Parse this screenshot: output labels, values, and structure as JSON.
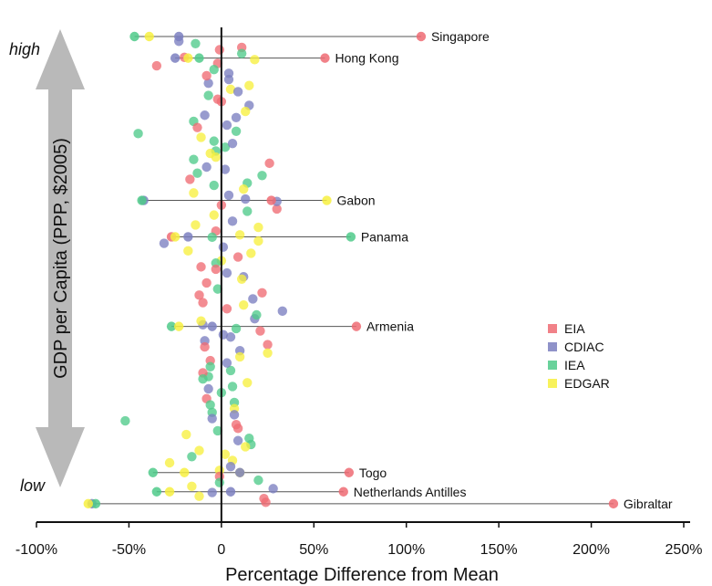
{
  "chart_data": {
    "type": "scatter",
    "xlabel": "Percentage Difference from Mean",
    "ylabel": "GDP per Capita (PPP, $2005)",
    "y_high_label": "high",
    "y_low_label": "low",
    "xlim": [
      -100,
      250
    ],
    "xticks": [
      -100,
      -50,
      0,
      50,
      100,
      150,
      200,
      250
    ],
    "xtick_labels": [
      "-100%",
      "-50%",
      "0",
      "50%",
      "100%",
      "150%",
      "200%",
      "250%"
    ],
    "legend_position": "right",
    "series": [
      {
        "name": "EIA",
        "color": "#ef6b73"
      },
      {
        "name": "CDIAC",
        "color": "#7b7fc0"
      },
      {
        "name": "IEA",
        "color": "#4fca8a"
      },
      {
        "name": "EDGAR",
        "color": "#f7f03f"
      }
    ],
    "highlighted_countries": [
      {
        "name": "Singapore",
        "rank_from_top": 0.0,
        "points": {
          "EIA": 108,
          "CDIAC": -23,
          "IEA": -47,
          "EDGAR": -39
        }
      },
      {
        "name": "Hong Kong",
        "rank_from_top": 0.045,
        "points": {
          "EIA": 56,
          "CDIAC": -25,
          "IEA": -12,
          "EDGAR": -18
        }
      },
      {
        "name": "Gabon",
        "rank_from_top": 0.342,
        "points": {
          "EIA": 27,
          "CDIAC": -42,
          "IEA": -43,
          "EDGAR": 57
        }
      },
      {
        "name": "Panama",
        "rank_from_top": 0.418,
        "points": {
          "EIA": -27,
          "CDIAC": -18,
          "IEA": 70,
          "EDGAR": -25
        }
      },
      {
        "name": "Armenia",
        "rank_from_top": 0.605,
        "points": {
          "EIA": 73,
          "CDIAC": -5,
          "IEA": -27,
          "EDGAR": -23
        }
      },
      {
        "name": "Togo",
        "rank_from_top": 0.91,
        "points": {
          "EIA": 69,
          "CDIAC": 10,
          "IEA": -37,
          "EDGAR": -20
        }
      },
      {
        "name": "Netherlands Antilles",
        "rank_from_top": 0.95,
        "points": {
          "EIA": 66,
          "CDIAC": 5,
          "IEA": -35,
          "EDGAR": -28
        }
      },
      {
        "name": "Gibraltar",
        "rank_from_top": 0.975,
        "points": {
          "EIA": 212,
          "CDIAC": -70,
          "IEA": -68,
          "EDGAR": -72
        }
      }
    ],
    "background_points": [
      [
        -23,
        1
      ],
      [
        8,
        2
      ],
      [
        -3,
        2
      ],
      [
        15,
        2
      ],
      [
        0,
        3
      ],
      [
        -7,
        1
      ],
      [
        5,
        2
      ],
      [
        -15,
        3
      ],
      [
        20,
        2
      ],
      [
        -10,
        0
      ],
      [
        3,
        1
      ],
      [
        -5,
        2
      ],
      [
        10,
        3
      ],
      [
        -20,
        0
      ],
      [
        25,
        0
      ],
      [
        -8,
        1
      ],
      [
        2,
        3
      ],
      [
        12,
        1
      ],
      [
        -2,
        0
      ],
      [
        6,
        2
      ],
      [
        30,
        0
      ],
      [
        -12,
        3
      ],
      [
        18,
        1
      ],
      [
        -4,
        2
      ],
      [
        9,
        0
      ],
      [
        -18,
        3
      ],
      [
        4,
        1
      ],
      [
        -6,
        0
      ],
      [
        14,
        2
      ],
      [
        -1,
        3
      ],
      [
        22,
        0
      ],
      [
        -9,
        1
      ],
      [
        7,
        2
      ],
      [
        -14,
        3
      ],
      [
        11,
        0
      ],
      [
        1,
        1
      ],
      [
        -3,
        3
      ],
      [
        16,
        2
      ],
      [
        -11,
        0
      ],
      [
        5,
        3
      ],
      [
        -7,
        2
      ],
      [
        13,
        1
      ],
      [
        -16,
        3
      ],
      [
        3,
        0
      ],
      [
        8,
        2
      ],
      [
        -5,
        1
      ],
      [
        20,
        3
      ],
      [
        -2,
        0
      ],
      [
        10,
        1
      ],
      [
        -13,
        2
      ],
      [
        6,
        3
      ],
      [
        -8,
        0
      ],
      [
        15,
        1
      ],
      [
        0,
        2
      ],
      [
        -4,
        3
      ],
      [
        24,
        0
      ],
      [
        -10,
        1
      ],
      [
        2,
        2
      ],
      [
        -19,
        3
      ],
      [
        9,
        0
      ],
      [
        4,
        1
      ],
      [
        -6,
        2
      ],
      [
        12,
        3
      ],
      [
        -1,
        0
      ],
      [
        17,
        1
      ],
      [
        -15,
        2
      ],
      [
        7,
        3
      ],
      [
        -3,
        0
      ],
      [
        11,
        2
      ],
      [
        -9,
        1
      ],
      [
        26,
        0
      ],
      [
        -12,
        3
      ],
      [
        3,
        1
      ],
      [
        -7,
        2
      ],
      [
        14,
        3
      ],
      [
        0,
        0
      ],
      [
        -5,
        1
      ],
      [
        19,
        2
      ],
      [
        -11,
        3
      ],
      [
        8,
        0
      ],
      [
        1,
        1
      ],
      [
        -4,
        2
      ],
      [
        10,
        3
      ],
      [
        -17,
        0
      ],
      [
        5,
        1
      ],
      [
        -2,
        2
      ],
      [
        13,
        3
      ],
      [
        -8,
        0
      ],
      [
        6,
        1
      ],
      [
        -14,
        2
      ],
      [
        21,
        0
      ],
      [
        -6,
        3
      ],
      [
        9,
        1
      ],
      [
        -3,
        2
      ],
      [
        15,
        3
      ],
      [
        -10,
        0
      ],
      [
        4,
        1
      ],
      [
        -1,
        2
      ],
      [
        12,
        3
      ],
      [
        -13,
        0
      ],
      [
        7,
        1
      ],
      [
        -5,
        2
      ],
      [
        18,
        3
      ],
      [
        -9,
        0
      ],
      [
        2,
        1
      ],
      [
        -16,
        2
      ],
      [
        11,
        3
      ],
      [
        0,
        0
      ],
      [
        -7,
        1
      ],
      [
        14,
        2
      ],
      [
        23,
        0
      ],
      [
        -11,
        3
      ],
      [
        6,
        1
      ],
      [
        -2,
        2
      ],
      [
        16,
        3
      ],
      [
        -8,
        0
      ],
      [
        3,
        1
      ],
      [
        -4,
        2
      ],
      [
        10,
        3
      ],
      [
        -12,
        0
      ],
      [
        8,
        1
      ],
      [
        -6,
        2
      ],
      [
        20,
        3
      ],
      [
        -1,
        0
      ],
      [
        5,
        1
      ],
      [
        -15,
        2
      ],
      [
        13,
        3
      ],
      [
        -3,
        0
      ],
      [
        9,
        1
      ],
      [
        -10,
        2
      ],
      [
        30,
        1
      ],
      [
        28,
        1
      ],
      [
        33,
        1
      ],
      [
        -45,
        2
      ],
      [
        -52,
        2
      ],
      [
        -31,
        1
      ],
      [
        -35,
        0
      ],
      [
        25,
        3
      ],
      [
        22,
        2
      ],
      [
        -28,
        3
      ]
    ]
  }
}
